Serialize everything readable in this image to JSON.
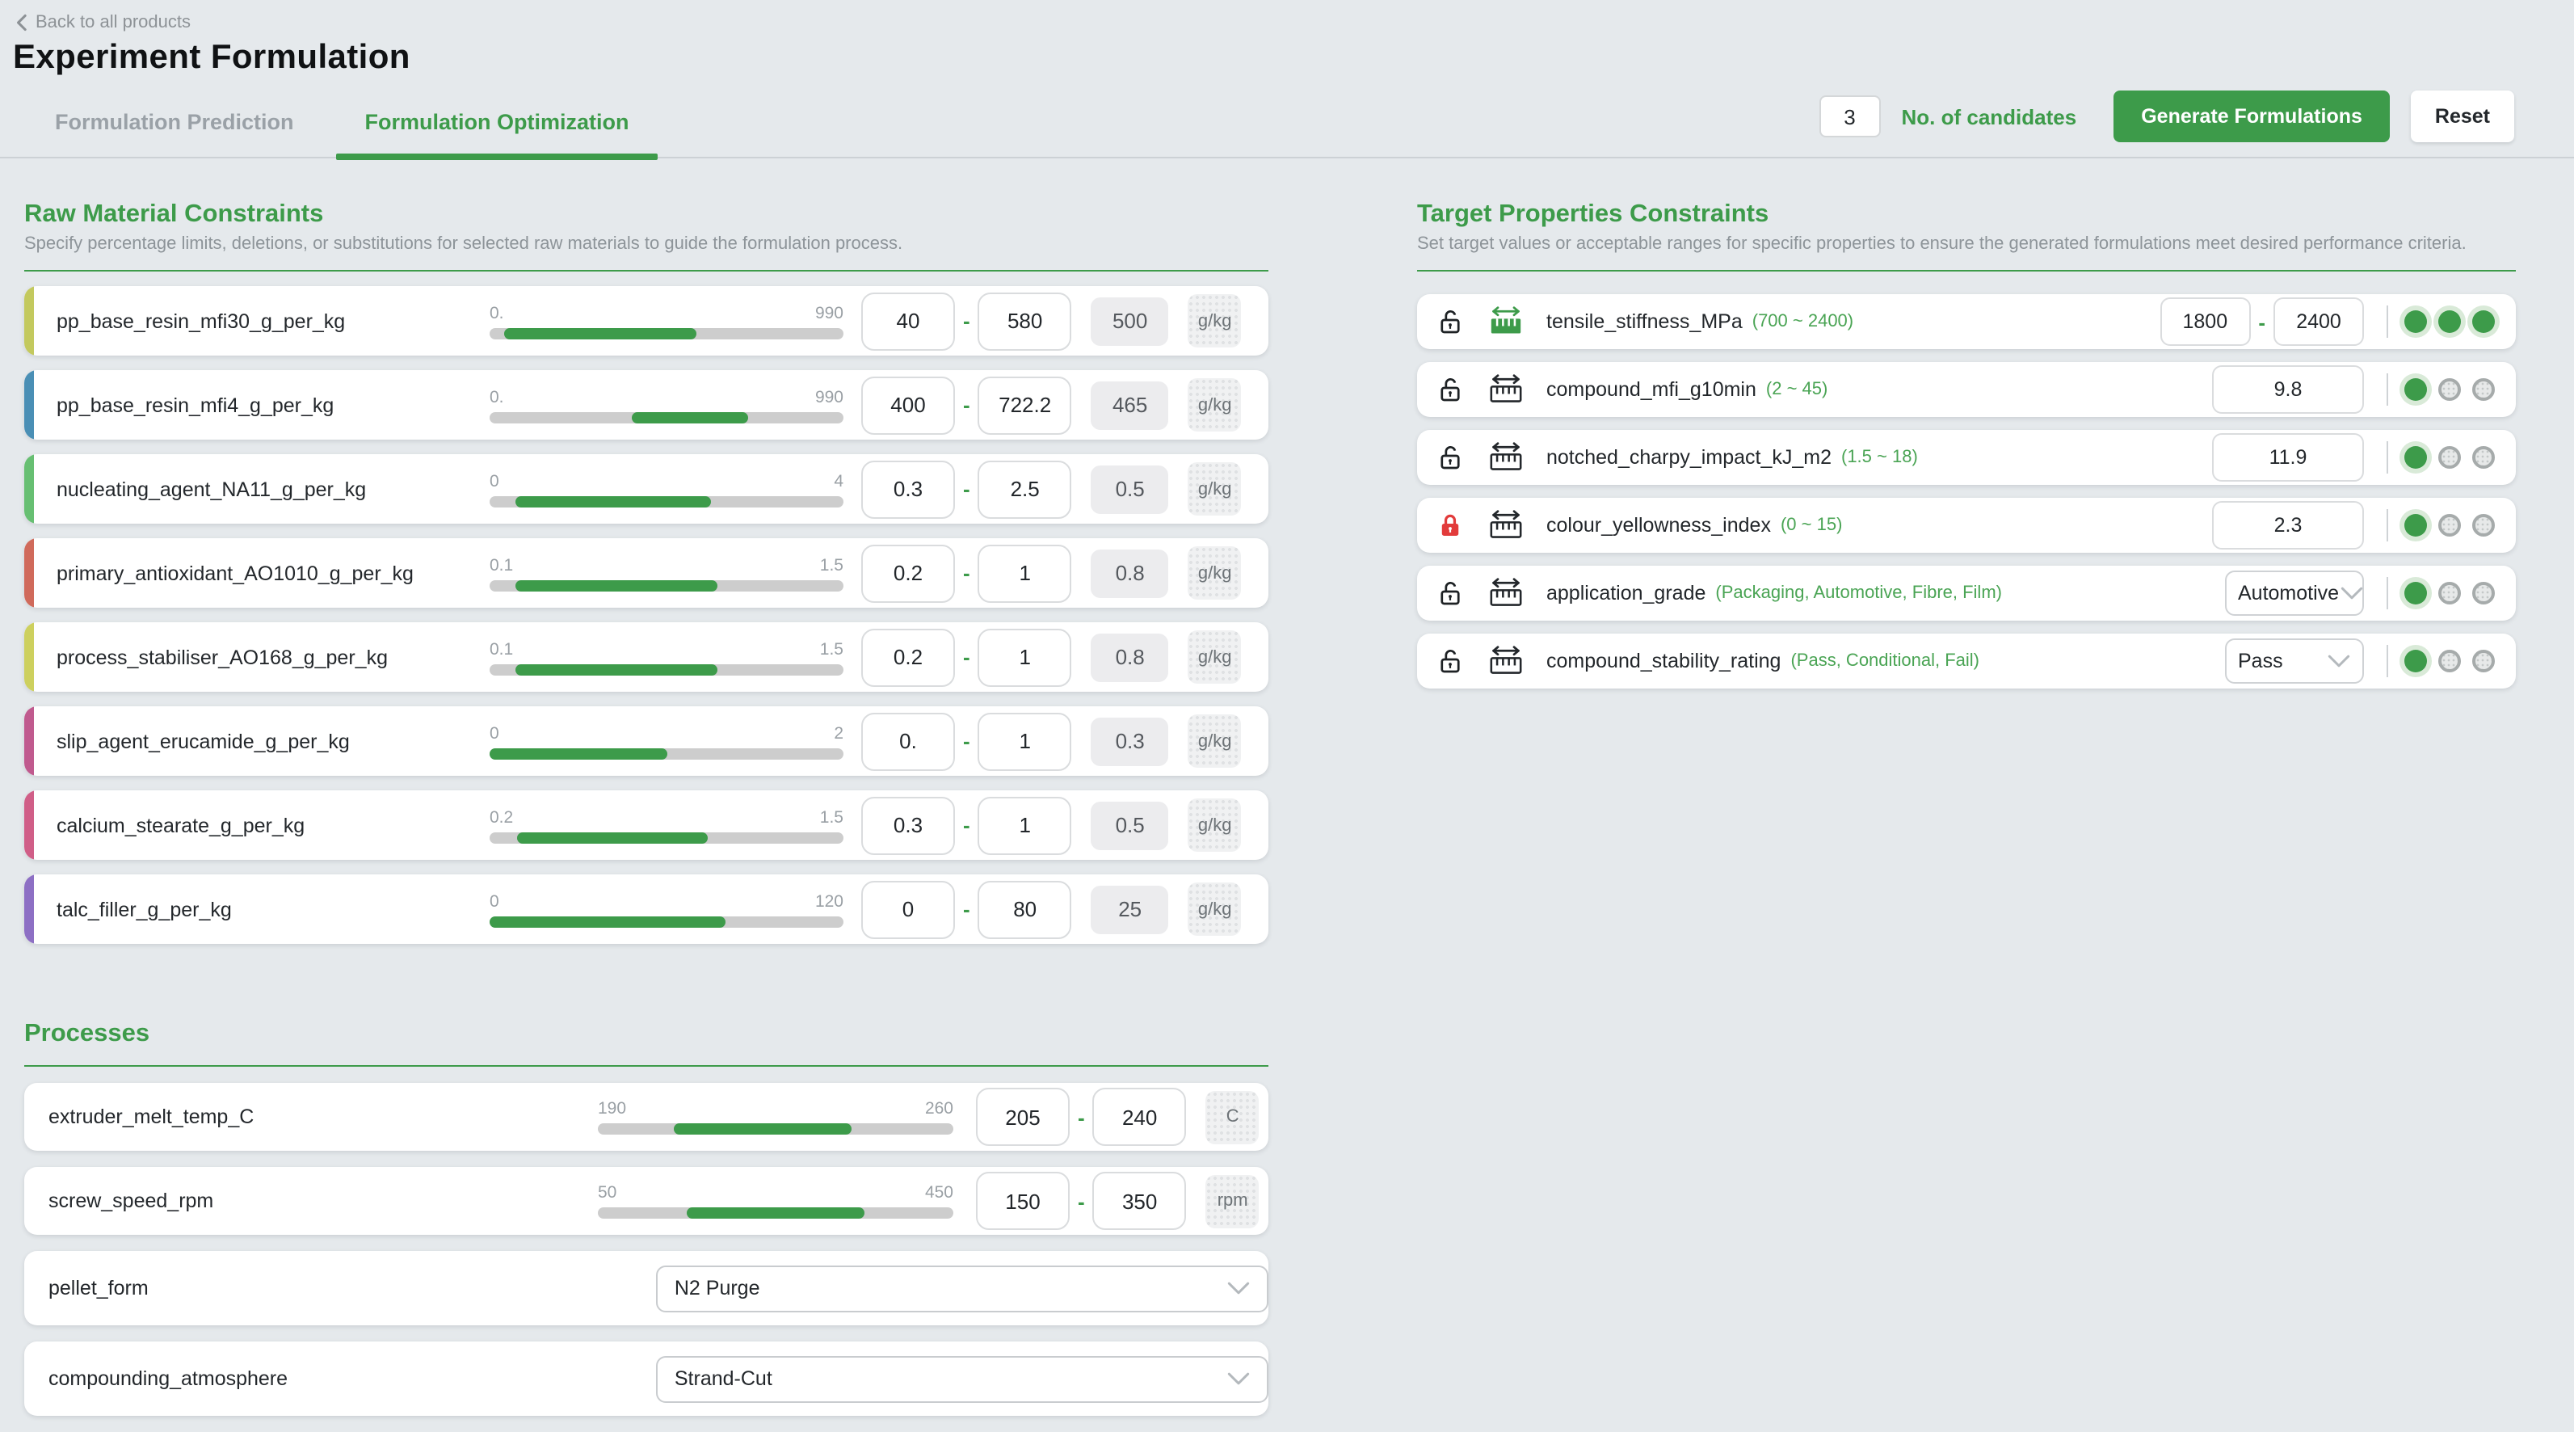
{
  "colors": {
    "accent": "#3d9b4a",
    "locked_red": "#e23b3b"
  },
  "header": {
    "back_label": "Back to all products",
    "title": "Experiment Formulation",
    "tabs": [
      {
        "label": "Formulation Prediction",
        "active": false
      },
      {
        "label": "Formulation Optimization",
        "active": true
      }
    ],
    "toolbar": {
      "candidates_value": "3",
      "candidates_label": "No. of candidates",
      "generate_label": "Generate Formulations",
      "reset_label": "Reset"
    }
  },
  "ui": {
    "dash": "-"
  },
  "raw_materials": {
    "heading": "Raw Material Constraints",
    "subtitle": "Specify percentage limits, deletions, or substitutions for selected raw materials to guide the formulation process.",
    "items": [
      {
        "name": "pp_base_resin_mfi30_g_per_kg",
        "color": "#c3c95e",
        "lo_label": "0.",
        "hi_label": "990",
        "min": "40",
        "max": "580",
        "default": "500",
        "unit": "g/kg"
      },
      {
        "name": "pp_base_resin_mfi4_g_per_kg",
        "color": "#4a8fb5",
        "lo_label": "0.",
        "hi_label": "990",
        "min": "400",
        "max": "722.2",
        "default": "465",
        "unit": "g/kg"
      },
      {
        "name": "nucleating_agent_NA11_g_per_kg",
        "color": "#67bf72",
        "lo_label": "0",
        "hi_label": "4",
        "min": "0.3",
        "max": "2.5",
        "default": "0.5",
        "unit": "g/kg"
      },
      {
        "name": "primary_antioxidant_AO1010_g_per_kg",
        "color": "#d06a5b",
        "lo_label": "0.1",
        "hi_label": "1.5",
        "min": "0.2",
        "max": "1",
        "default": "0.8",
        "unit": "g/kg"
      },
      {
        "name": "process_stabiliser_AO168_g_per_kg",
        "color": "#cdd05e",
        "lo_label": "0.1",
        "hi_label": "1.5",
        "min": "0.2",
        "max": "1",
        "default": "0.8",
        "unit": "g/kg"
      },
      {
        "name": "slip_agent_erucamide_g_per_kg",
        "color": "#c05a8e",
        "lo_label": "0",
        "hi_label": "2",
        "min": "0.",
        "max": "1",
        "default": "0.3",
        "unit": "g/kg"
      },
      {
        "name": "calcium_stearate_g_per_kg",
        "color": "#d05e87",
        "lo_label": "0.2",
        "hi_label": "1.5",
        "min": "0.3",
        "max": "1",
        "default": "0.5",
        "unit": "g/kg"
      },
      {
        "name": "talc_filler_g_per_kg",
        "color": "#8d6fc4",
        "lo_label": "0",
        "hi_label": "120",
        "min": "0",
        "max": "80",
        "default": "25",
        "unit": "g/kg"
      }
    ]
  },
  "processes": {
    "heading": "Processes",
    "items": [
      {
        "type": "slider",
        "name": "extruder_melt_temp_C",
        "lo_label": "190",
        "hi_label": "260",
        "min": "205",
        "max": "240",
        "unit": "C"
      },
      {
        "type": "slider",
        "name": "screw_speed_rpm",
        "lo_label": "50",
        "hi_label": "450",
        "min": "150",
        "max": "350",
        "unit": "rpm"
      },
      {
        "type": "select",
        "name": "pellet_form",
        "value": "N2 Purge"
      },
      {
        "type": "select",
        "name": "compounding_atmosphere",
        "value": "Strand-Cut"
      }
    ]
  },
  "targets": {
    "heading": "Target Properties Constraints",
    "subtitle": "Set target values or acceptable ranges for specific properties to ensure the generated formulations meet desired performance criteria.",
    "items": [
      {
        "name": "tensile_stiffness_MPa",
        "hint": "(700 ~ 2400)",
        "locked": false,
        "range_mode": true,
        "control": "range",
        "min": "1800",
        "max": "2400",
        "importance": 3
      },
      {
        "name": "compound_mfi_g10min",
        "hint": "(2 ~ 45)",
        "locked": false,
        "range_mode": false,
        "control": "value",
        "value": "9.8",
        "importance": 1
      },
      {
        "name": "notched_charpy_impact_kJ_m2",
        "hint": "(1.5 ~ 18)",
        "locked": false,
        "range_mode": false,
        "control": "value",
        "value": "11.9",
        "importance": 1
      },
      {
        "name": "colour_yellowness_index",
        "hint": "(0 ~ 15)",
        "locked": true,
        "range_mode": false,
        "control": "value",
        "value": "2.3",
        "importance": 1
      },
      {
        "name": "application_grade",
        "hint": "(Packaging, Automotive, Fibre, Film)",
        "locked": false,
        "range_mode": false,
        "control": "select",
        "value": "Automotive",
        "importance": 1
      },
      {
        "name": "compound_stability_rating",
        "hint": "(Pass, Conditional, Fail)",
        "locked": false,
        "range_mode": false,
        "control": "select",
        "value": "Pass",
        "importance": 1
      }
    ]
  }
}
